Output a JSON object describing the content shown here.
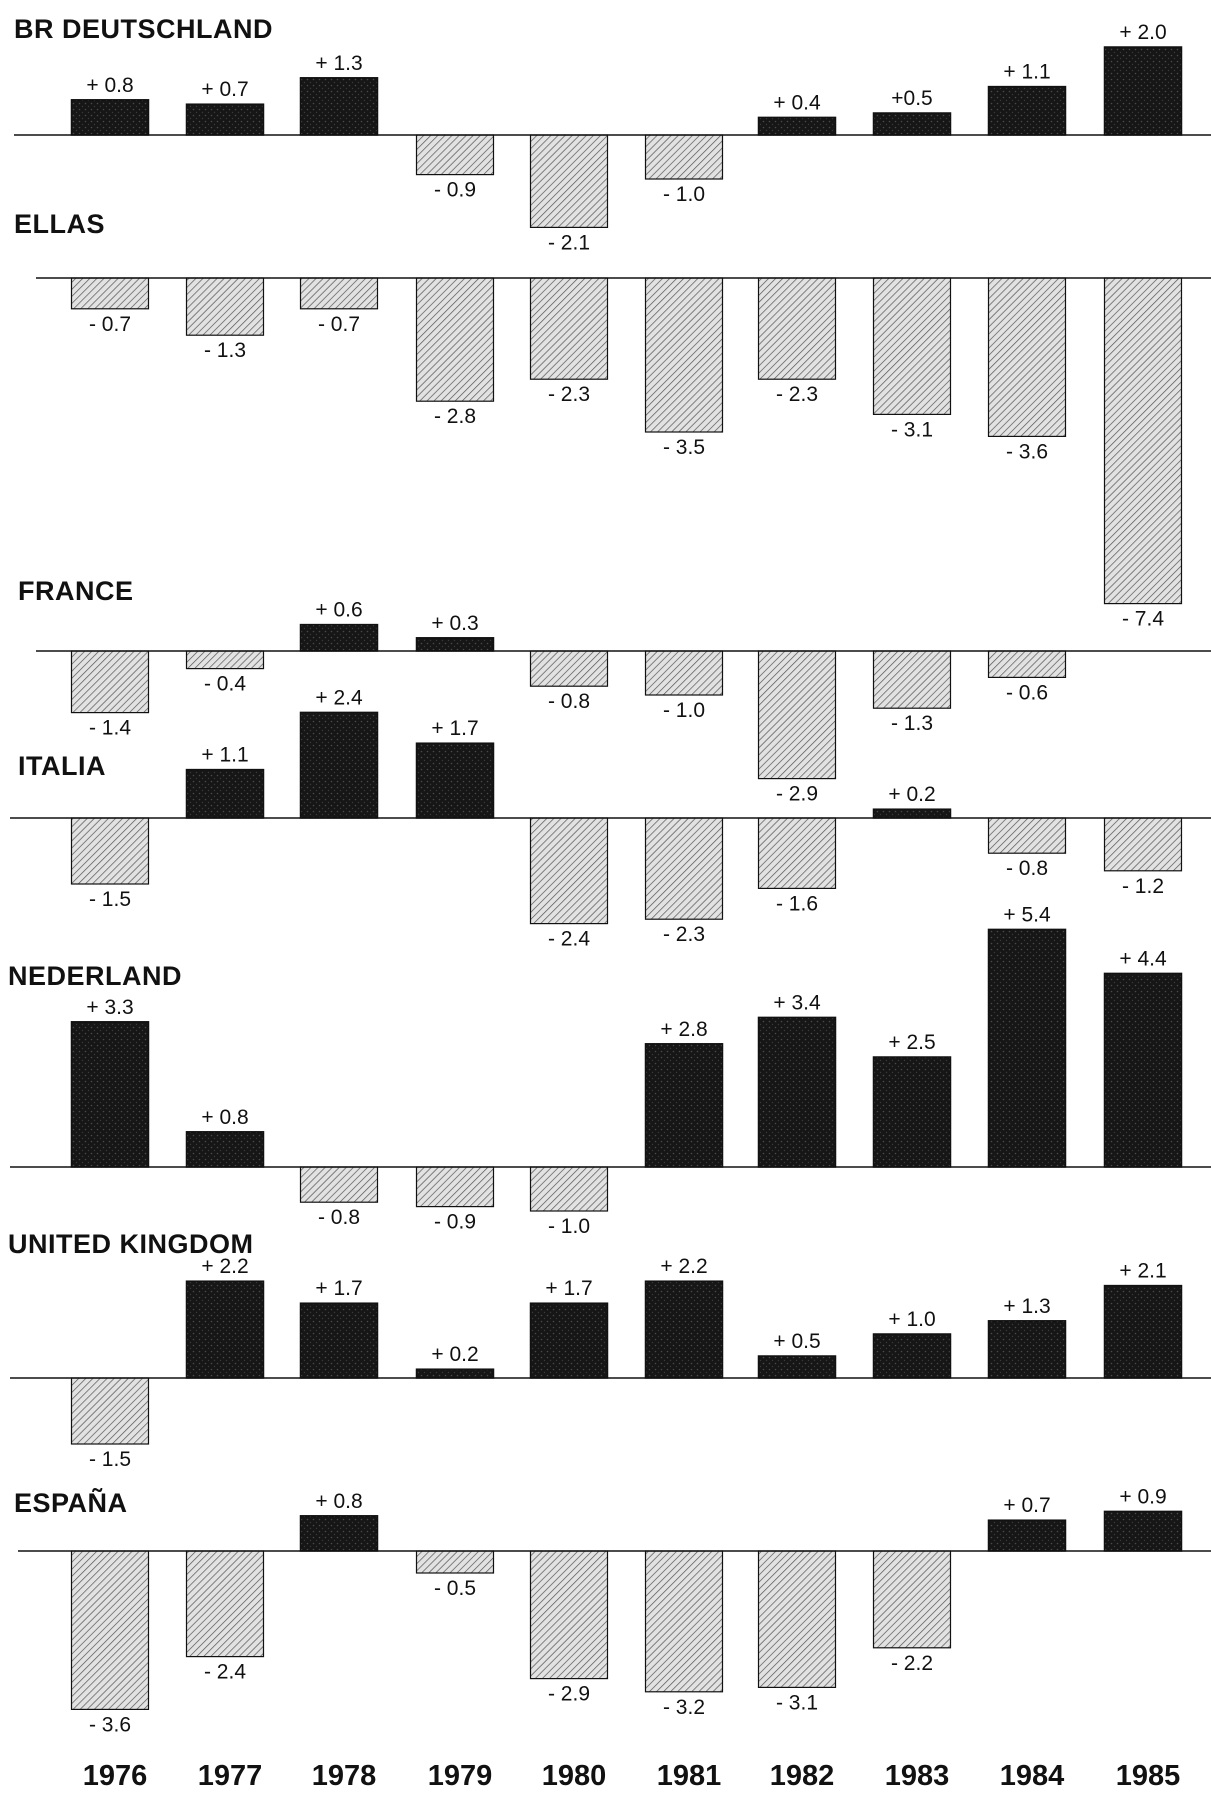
{
  "chart_data": [
    {
      "type": "bar",
      "title": "BR DEUTSCHLAND",
      "categories": [
        "1976",
        "1977",
        "1978",
        "1979",
        "1980",
        "1981",
        "1982",
        "1983",
        "1984",
        "1985"
      ],
      "values": [
        0.8,
        0.7,
        1.3,
        -0.9,
        -2.1,
        -1.0,
        0.4,
        0.5,
        1.1,
        2.0
      ],
      "labels": [
        "+ 0.8",
        "+ 0.7",
        "+ 1.3",
        "- 0.9",
        "- 2.1",
        "- 1.0",
        "+ 0.4",
        "+0.5",
        "+ 1.1",
        "+ 2.0"
      ]
    },
    {
      "type": "bar",
      "title": "ELLAS",
      "categories": [
        "1976",
        "1977",
        "1978",
        "1979",
        "1980",
        "1981",
        "1982",
        "1983",
        "1984",
        "1985"
      ],
      "values": [
        -0.7,
        -1.3,
        -0.7,
        -2.8,
        -2.3,
        -3.5,
        -2.3,
        -3.1,
        -3.6,
        -7.4
      ],
      "labels": [
        "- 0.7",
        "- 1.3",
        "- 0.7",
        "- 2.8",
        "- 2.3",
        "- 3.5",
        "- 2.3",
        "- 3.1",
        "- 3.6",
        "- 7.4"
      ]
    },
    {
      "type": "bar",
      "title": "FRANCE",
      "categories": [
        "1976",
        "1977",
        "1978",
        "1979",
        "1980",
        "1981",
        "1982",
        "1983",
        "1984",
        "1985"
      ],
      "values": [
        -1.4,
        -0.4,
        0.6,
        0.3,
        -0.8,
        -1.0,
        -2.9,
        -1.3,
        -0.6,
        null
      ],
      "labels": [
        "- 1.4",
        "- 0.4",
        "+ 0.6",
        "+ 0.3",
        "- 0.8",
        "- 1.0",
        "- 2.9",
        "- 1.3",
        "- 0.6",
        ""
      ]
    },
    {
      "type": "bar",
      "title": "ITALIA",
      "categories": [
        "1976",
        "1977",
        "1978",
        "1979",
        "1980",
        "1981",
        "1982",
        "1983",
        "1984",
        "1985"
      ],
      "values": [
        -1.5,
        1.1,
        2.4,
        1.7,
        -2.4,
        -2.3,
        -1.6,
        0.2,
        -0.8,
        -1.2
      ],
      "labels": [
        "- 1.5",
        "+ 1.1",
        "+ 2.4",
        "+ 1.7",
        "- 2.4",
        "- 2.3",
        "- 1.6",
        "+ 0.2",
        "- 0.8",
        "- 1.2"
      ]
    },
    {
      "type": "bar",
      "title": "NEDERLAND",
      "categories": [
        "1976",
        "1977",
        "1978",
        "1979",
        "1980",
        "1981",
        "1982",
        "1983",
        "1984",
        "1985"
      ],
      "values": [
        3.3,
        0.8,
        -0.8,
        -0.9,
        -1.0,
        2.8,
        3.4,
        2.5,
        5.4,
        4.4
      ],
      "labels": [
        "+ 3.3",
        "+ 0.8",
        "- 0.8",
        "- 0.9",
        "- 1.0",
        "+ 2.8",
        "+ 3.4",
        "+ 2.5",
        "+ 5.4",
        "+ 4.4"
      ]
    },
    {
      "type": "bar",
      "title": "UNITED KINGDOM",
      "categories": [
        "1976",
        "1977",
        "1978",
        "1979",
        "1980",
        "1981",
        "1982",
        "1983",
        "1984",
        "1985"
      ],
      "values": [
        -1.5,
        2.2,
        1.7,
        0.2,
        1.7,
        2.2,
        0.5,
        1.0,
        1.3,
        2.1
      ],
      "labels": [
        "- 1.5",
        "+ 2.2",
        "+ 1.7",
        "+ 0.2",
        "+ 1.7",
        "+ 2.2",
        "+ 0.5",
        "+ 1.0",
        "+ 1.3",
        "+ 2.1"
      ]
    },
    {
      "type": "bar",
      "title": "ESPAÑA",
      "categories": [
        "1976",
        "1977",
        "1978",
        "1979",
        "1980",
        "1981",
        "1982",
        "1983",
        "1984",
        "1985"
      ],
      "values": [
        -3.6,
        -2.4,
        0.8,
        -0.5,
        -2.9,
        -3.2,
        -3.1,
        -2.2,
        0.7,
        0.9
      ],
      "labels": [
        "- 3.6",
        "- 2.4",
        "+ 0.8",
        "- 0.5",
        "- 2.9",
        "- 3.2",
        "- 3.1",
        "- 2.2",
        "+ 0.7",
        "+ 0.9"
      ]
    }
  ],
  "colors": {
    "positive_fill": "#1e1e1e",
    "negative_fill": "#d6d6d6",
    "stroke": "#111111"
  }
}
